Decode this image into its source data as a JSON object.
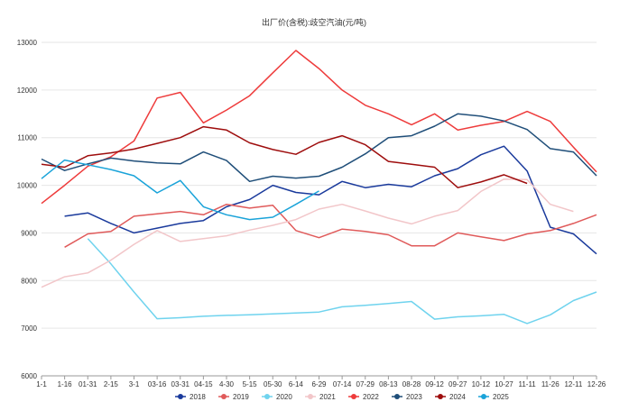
{
  "chart_data": {
    "type": "line",
    "title": "出厂价(含税):歧空汽油(元/吨)",
    "xlabel": "",
    "ylabel": "",
    "ylim": [
      6000,
      13000
    ],
    "yticks": [
      6000,
      7000,
      8000,
      9000,
      10000,
      11000,
      12000,
      13000
    ],
    "grid": "horizontal",
    "legend_position": "bottom",
    "categories": [
      "1-1",
      "1-16",
      "01-31",
      "2-15",
      "3-1",
      "03-16",
      "03-31",
      "04-15",
      "4-30",
      "5-15",
      "05-30",
      "6-14",
      "6-29",
      "07-14",
      "07-29",
      "08-13",
      "08-28",
      "09-12",
      "09-27",
      "10-12",
      "10-27",
      "11-11",
      "11-26",
      "12-11",
      "12-26"
    ],
    "series": [
      {
        "name": "2018",
        "color": "#1a3a9c",
        "values": [
          null,
          9350,
          9420,
          9200,
          9000,
          9100,
          9200,
          9260,
          9550,
          9700,
          10000,
          9850,
          9800,
          10080,
          9950,
          10020,
          9970,
          10200,
          10350,
          10640,
          10820,
          10300,
          9120,
          8980,
          8560
        ]
      },
      {
        "name": "2019",
        "color": "#e05a5a",
        "values": [
          null,
          8700,
          8980,
          9030,
          9350,
          9400,
          9450,
          9380,
          9600,
          9520,
          9580,
          9050,
          8900,
          9080,
          9030,
          8960,
          8730,
          8730,
          9000,
          8920,
          8840,
          8980,
          9050,
          9200,
          9380
        ]
      },
      {
        "name": "2020",
        "color": "#6fd3ee",
        "values": [
          null,
          null,
          8880,
          8350,
          7760,
          7200,
          7220,
          7250,
          7270,
          7280,
          7300,
          7320,
          7340,
          7450,
          7480,
          7520,
          7560,
          7190,
          7240,
          7260,
          7290,
          7100,
          7280,
          7580,
          7760
        ]
      },
      {
        "name": "2021",
        "color": "#f2c6c9",
        "values": [
          7860,
          8080,
          8160,
          8430,
          8760,
          9050,
          8820,
          8880,
          8940,
          9060,
          9160,
          9280,
          9500,
          9600,
          9460,
          9310,
          9190,
          9350,
          9470,
          9870,
          10130,
          10120,
          9600,
          9450,
          null
        ]
      },
      {
        "name": "2022",
        "color": "#ee3b3b",
        "values": [
          9620,
          10000,
          10400,
          10600,
          10930,
          11830,
          11950,
          11310,
          11580,
          11880,
          12360,
          12830,
          12450,
          12000,
          11680,
          11500,
          11270,
          11500,
          11160,
          11260,
          11340,
          11550,
          11340,
          10800,
          10280
        ]
      },
      {
        "name": "2023",
        "color": "#1f4e79",
        "values": [
          10550,
          10310,
          10450,
          10570,
          10510,
          10470,
          10450,
          10700,
          10520,
          10080,
          10190,
          10150,
          10190,
          10380,
          10660,
          11000,
          11040,
          11240,
          11500,
          11450,
          11350,
          11170,
          10770,
          10700,
          10200
        ]
      },
      {
        "name": "2024",
        "color": "#9e0d0d",
        "values": [
          10440,
          10380,
          10620,
          10680,
          10760,
          10880,
          11000,
          11230,
          11160,
          10890,
          10750,
          10650,
          10900,
          11040,
          10850,
          10500,
          10440,
          10380,
          9950,
          10070,
          10220,
          10040,
          null,
          null,
          null
        ]
      },
      {
        "name": "2025",
        "color": "#1aa3d9",
        "values": [
          10140,
          10530,
          10430,
          10330,
          10200,
          9840,
          10100,
          9550,
          9380,
          9280,
          9330,
          9600,
          9880,
          null,
          null,
          null,
          null,
          null,
          null,
          null,
          null,
          null,
          null,
          null,
          null
        ]
      }
    ]
  }
}
